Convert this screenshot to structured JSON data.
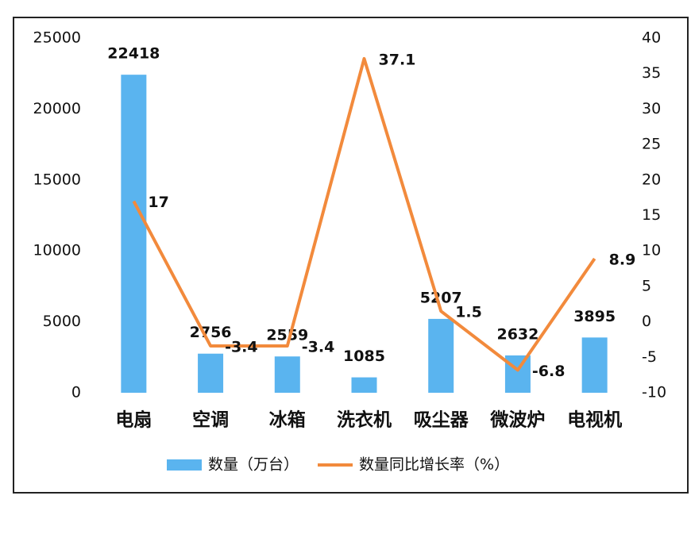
{
  "chart_data": {
    "type": "combo",
    "categories": [
      "电扇",
      "空调",
      "冰箱",
      "洗衣机",
      "吸尘器",
      "微波炉",
      "电视机"
    ],
    "series": [
      {
        "name": "数量（万台）",
        "type": "bar",
        "color": "#5ab4ef",
        "values": [
          22418,
          2756,
          2559,
          1085,
          5207,
          2632,
          3895
        ]
      },
      {
        "name": "数量同比增长率（%）",
        "type": "line",
        "axis": "y2",
        "color": "#f28a3c",
        "values": [
          17,
          -3.4,
          -3.4,
          37.1,
          1.5,
          -6.8,
          8.9
        ]
      }
    ],
    "ylim": [
      0,
      25000
    ],
    "yticks": [
      0,
      5000,
      10000,
      15000,
      20000,
      25000
    ],
    "y2lim": [
      -10,
      40
    ],
    "y2ticks": [
      -10,
      -5,
      0,
      5,
      10,
      15,
      20,
      25,
      30,
      35,
      40
    ],
    "legend": "bottom"
  }
}
